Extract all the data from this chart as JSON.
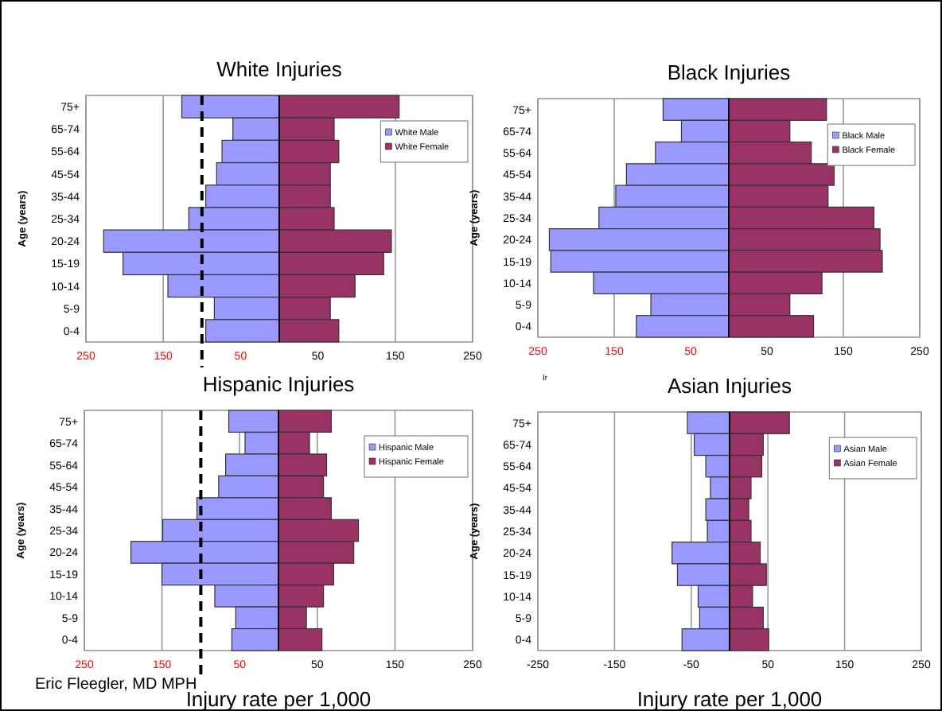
{
  "chart_data": [
    {
      "type": "bar",
      "title": "White Injuries",
      "ylabel": "Age (years)",
      "orientation": "horizontal",
      "stacked": true,
      "grid": "x",
      "legend": "top right",
      "categories": [
        "75+",
        "65-74",
        "55-64",
        "45-54",
        "35-44",
        "25-34",
        "20-24",
        "15-19",
        "10-14",
        "5-9",
        "0-4"
      ],
      "xlim": [
        -250,
        250
      ],
      "xticks": [
        {
          "value": -250,
          "label": "250"
        },
        {
          "value": -150,
          "label": "150"
        },
        {
          "value": -50,
          "label": "50"
        },
        50,
        150,
        250
      ],
      "ref_lines": [
        {
          "axis": "x",
          "value": -100,
          "label": null,
          "color": "#000000",
          "line_style": "dashed"
        }
      ],
      "series": [
        {
          "name": "White Male",
          "color": "#9999ff",
          "values": [
            -126,
            -60,
            -74,
            -81,
            -95,
            -117,
            -227,
            -202,
            -144,
            -84,
            -95
          ]
        },
        {
          "name": "White Female",
          "color": "#993366",
          "values": [
            155,
            71,
            77,
            66,
            66,
            71,
            145,
            135,
            98,
            66,
            77
          ]
        }
      ]
    },
    {
      "type": "bar",
      "title": "Black Injuries",
      "ylabel": "Age (years)",
      "orientation": "horizontal",
      "stacked": true,
      "grid": "x",
      "legend": "top right",
      "annotations": [
        "Ir"
      ],
      "categories": [
        "75+",
        "65-74",
        "55-64",
        "45-54",
        "35-44",
        "25-34",
        "20-24",
        "15-19",
        "10-14",
        "5-9",
        "0-4"
      ],
      "xlim": [
        -250,
        250
      ],
      "xticks": [
        {
          "value": -250,
          "label": "250"
        },
        {
          "value": -150,
          "label": "150"
        },
        {
          "value": -50,
          "label": "50"
        },
        50,
        150,
        250
      ],
      "series": [
        {
          "name": "Black Male",
          "color": "#9999ff",
          "values": [
            -86,
            -62,
            -96,
            -134,
            -148,
            -170,
            -235,
            -233,
            -177,
            -102,
            -121
          ]
        },
        {
          "name": "Black Female",
          "color": "#993366",
          "values": [
            128,
            80,
            108,
            138,
            130,
            190,
            198,
            201,
            122,
            80,
            111
          ]
        }
      ]
    },
    {
      "type": "bar",
      "title": "Hispanic Injuries",
      "ylabel": "Age (years)",
      "xlabel": "Injury rate per 1,000",
      "orientation": "horizontal",
      "stacked": true,
      "grid": "x",
      "legend": "top right",
      "annotations": [
        "Eric Fleegler, MD MPH"
      ],
      "categories": [
        "75+",
        "65-74",
        "55-64",
        "45-54",
        "35-44",
        "25-34",
        "20-24",
        "15-19",
        "10-14",
        "5-9",
        "0-4"
      ],
      "xlim": [
        -250,
        250
      ],
      "xticks": [
        {
          "value": -250,
          "label": "250"
        },
        {
          "value": -150,
          "label": "150"
        },
        {
          "value": -50,
          "label": "50"
        },
        50,
        150,
        250
      ],
      "ref_lines": [
        {
          "axis": "x",
          "value": -100,
          "label": null,
          "color": "#000000",
          "line_style": "dashed"
        }
      ],
      "series": [
        {
          "name": "Hispanic Male",
          "color": "#9999ff",
          "values": [
            -64,
            -43,
            -68,
            -77,
            -105,
            -149,
            -190,
            -150,
            -82,
            -55,
            -60
          ]
        },
        {
          "name": "Hispanic Female",
          "color": "#993366",
          "values": [
            68,
            40,
            62,
            58,
            68,
            103,
            97,
            71,
            58,
            36,
            56
          ]
        }
      ]
    },
    {
      "type": "bar",
      "title": "Asian Injuries",
      "ylabel": "Age (years)",
      "xlabel": "Injury rate per 1,000",
      "orientation": "horizontal",
      "stacked": true,
      "grid": "x",
      "legend": "top right",
      "categories": [
        "75+",
        "65-74",
        "55-64",
        "45-54",
        "35-44",
        "25-34",
        "20-24",
        "15-19",
        "10-14",
        "5-9",
        "0-4"
      ],
      "xlim": [
        -250,
        250
      ],
      "xticks": [
        -250,
        -150,
        -50,
        50,
        150,
        250
      ],
      "series": [
        {
          "name": "Asian Male",
          "color": "#9999ff",
          "values": [
            -55,
            -46,
            -31,
            -25,
            -31,
            -29,
            -75,
            -68,
            -41,
            -39,
            -62
          ]
        },
        {
          "name": "Asian Female",
          "color": "#993366",
          "values": [
            78,
            44,
            42,
            28,
            25,
            28,
            40,
            48,
            30,
            44,
            51
          ]
        }
      ]
    }
  ]
}
